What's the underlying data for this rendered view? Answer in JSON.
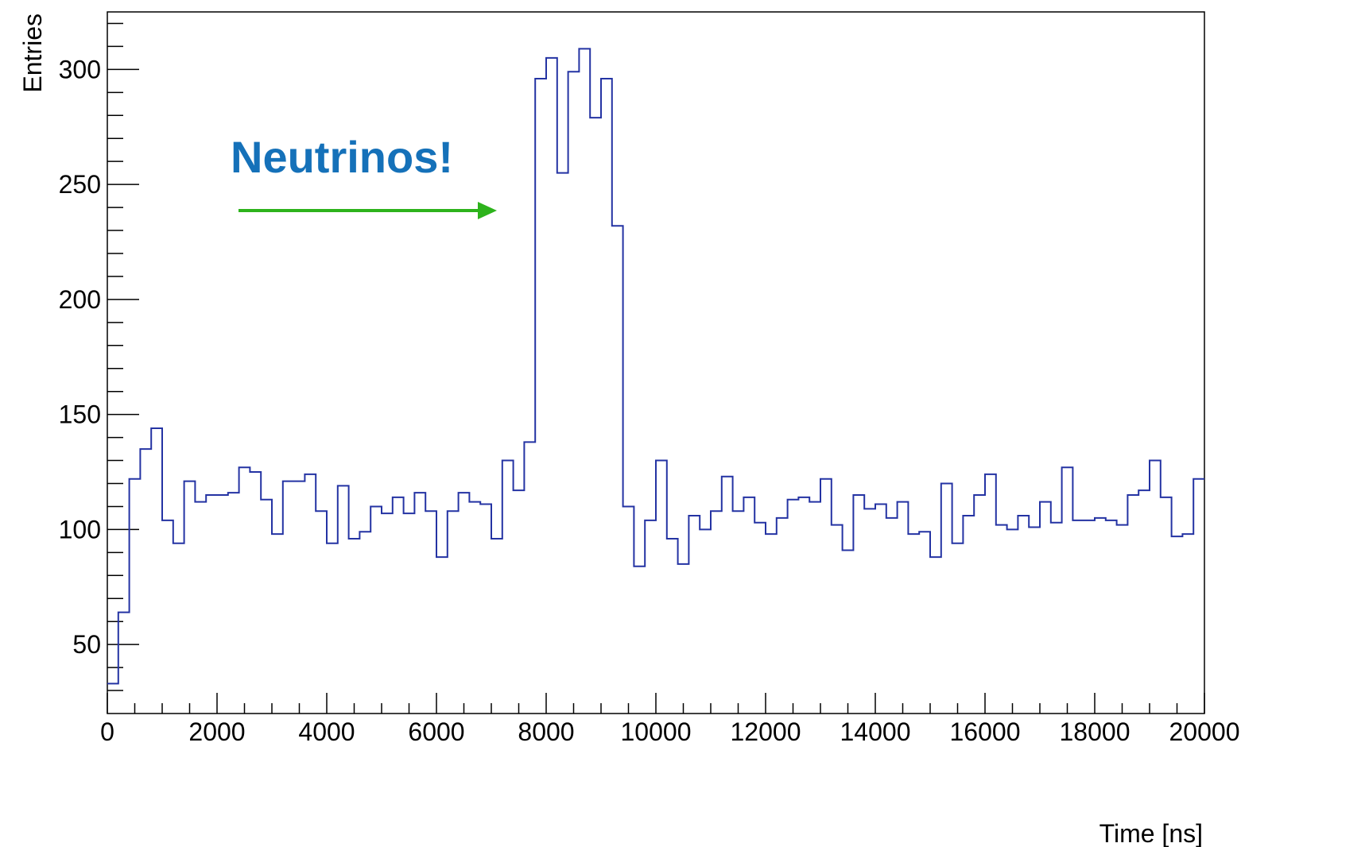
{
  "chart_data": {
    "type": "histogram",
    "xlabel": "Time [ns]",
    "ylabel": "Entries",
    "xlim": [
      0,
      20000
    ],
    "ylim": [
      20,
      325
    ],
    "bin_width": 200,
    "x_ticks": [
      0,
      2000,
      4000,
      6000,
      8000,
      10000,
      12000,
      14000,
      16000,
      18000,
      20000
    ],
    "x_tick_labels": [
      "0",
      "2000",
      "4000",
      "6000",
      "8000",
      "10000",
      "12000",
      "14000",
      "16000",
      "18000",
      "20000"
    ],
    "y_ticks": [
      50,
      100,
      150,
      200,
      250,
      300
    ],
    "y_tick_labels": [
      "50",
      "100",
      "150",
      "200",
      "250",
      "300"
    ],
    "grid": false,
    "line_color": "#2433a3",
    "series": [
      {
        "x": [
          0,
          200,
          400,
          600,
          800,
          1000,
          1200,
          1400,
          1600,
          1800,
          2000,
          2200,
          2400,
          2600,
          2800,
          3000,
          3200,
          3400,
          3600,
          3800,
          4000,
          4200,
          4400,
          4600,
          4800,
          5000,
          5200,
          5400,
          5600,
          5800,
          6000,
          6200,
          6400,
          6600,
          6800,
          7000,
          7200,
          7400,
          7600,
          7800,
          8000,
          8200,
          8400,
          8600,
          8800,
          9000,
          9200,
          9400,
          9600,
          9800,
          10000,
          10200,
          10400,
          10600,
          10800,
          11000,
          11200,
          11400,
          11600,
          11800,
          12000,
          12200,
          12400,
          12600,
          12800,
          13000,
          13200,
          13400,
          13600,
          13800,
          14000,
          14200,
          14400,
          14600,
          14800,
          15000,
          15200,
          15400,
          15600,
          15800,
          16000,
          16200,
          16400,
          16600,
          16800,
          17000,
          17200,
          17400,
          17600,
          17800,
          18000,
          18200,
          18400,
          18600,
          18800,
          19000,
          19200,
          19400,
          19600,
          19800
        ],
        "values": [
          33,
          64,
          122,
          135,
          144,
          104,
          94,
          121,
          112,
          115,
          115,
          116,
          127,
          125,
          113,
          98,
          121,
          121,
          124,
          108,
          94,
          119,
          96,
          99,
          110,
          107,
          114,
          107,
          116,
          108,
          88,
          108,
          116,
          112,
          111,
          96,
          130,
          117,
          138,
          296,
          305,
          255,
          299,
          309,
          279,
          296,
          232,
          110,
          84,
          104,
          130,
          96,
          85,
          106,
          100,
          108,
          123,
          108,
          114,
          103,
          98,
          105,
          113,
          114,
          112,
          122,
          102,
          91,
          115,
          109,
          111,
          105,
          112,
          98,
          99,
          88,
          120,
          94,
          106,
          115,
          124,
          102,
          100,
          106,
          101,
          112,
          103,
          127,
          104,
          104,
          105,
          104,
          102,
          115,
          117,
          130,
          114,
          97,
          98,
          122
        ]
      }
    ],
    "annotation": {
      "text": "Neutrinos!",
      "text_color": "#1571b9",
      "arrow_color": "#2db31c"
    }
  }
}
